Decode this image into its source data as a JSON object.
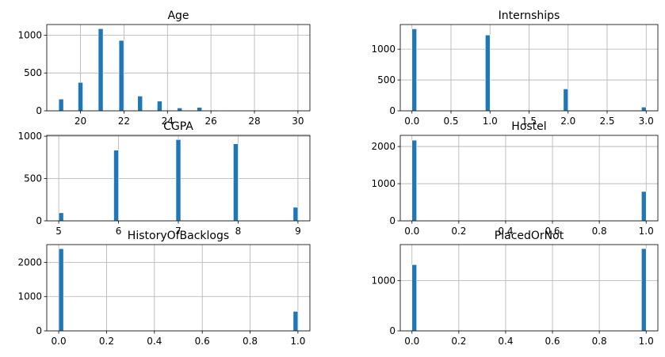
{
  "bar_color": "#1f77b4",
  "grid_color": "#b0b0b0",
  "chart_data": [
    {
      "type": "bar",
      "title": "Age",
      "xlim": [
        18.45,
        30.55
      ],
      "ylim": [
        0,
        1140
      ],
      "xticks": [
        20,
        22,
        24,
        26,
        28,
        30
      ],
      "xtick_labels": [
        "20",
        "22",
        "24",
        "26",
        "28",
        "30"
      ],
      "yticks": [
        0,
        500,
        1000
      ],
      "ytick_labels": [
        "0",
        "500",
        "1000"
      ],
      "bar_width": 0.22,
      "bars": [
        {
          "x": 19.11,
          "value": 155
        },
        {
          "x": 20.0,
          "value": 375
        },
        {
          "x": 20.93,
          "value": 1085
        },
        {
          "x": 21.88,
          "value": 930
        },
        {
          "x": 22.74,
          "value": 195
        },
        {
          "x": 23.64,
          "value": 128
        },
        {
          "x": 24.56,
          "value": 38
        },
        {
          "x": 25.47,
          "value": 45
        },
        {
          "x": 26.4,
          "value": 3
        }
      ]
    },
    {
      "type": "bar",
      "title": "Internships",
      "xlim": [
        -0.15,
        3.15
      ],
      "ylim": [
        0,
        1400
      ],
      "xticks": [
        0.0,
        0.5,
        1.0,
        1.5,
        2.0,
        2.5,
        3.0
      ],
      "xtick_labels": [
        "0.0",
        "0.5",
        "1.0",
        "1.5",
        "2.0",
        "2.5",
        "3.0"
      ],
      "yticks": [
        0,
        500,
        1000
      ],
      "ytick_labels": [
        "0",
        "500",
        "1000"
      ],
      "bar_width": 0.06,
      "bars": [
        {
          "x": 0.03,
          "value": 1330
        },
        {
          "x": 0.97,
          "value": 1230
        },
        {
          "x": 1.97,
          "value": 355
        },
        {
          "x": 2.97,
          "value": 60
        }
      ]
    },
    {
      "type": "bar",
      "title": "CGPA",
      "xlim": [
        4.8,
        9.2
      ],
      "ylim": [
        0,
        1010
      ],
      "xticks": [
        5,
        6,
        7,
        8,
        9
      ],
      "xtick_labels": [
        "5",
        "6",
        "7",
        "8",
        "9"
      ],
      "yticks": [
        0,
        500,
        1000
      ],
      "ytick_labels": [
        "0",
        "500",
        "1000"
      ],
      "bar_width": 0.08,
      "bars": [
        {
          "x": 5.04,
          "value": 95
        },
        {
          "x": 5.96,
          "value": 835
        },
        {
          "x": 7.0,
          "value": 960
        },
        {
          "x": 7.96,
          "value": 910
        },
        {
          "x": 8.96,
          "value": 160
        }
      ]
    },
    {
      "type": "bar",
      "title": "Hostel",
      "xlim": [
        -0.05,
        1.05
      ],
      "ylim": [
        0,
        2300
      ],
      "xticks": [
        0.0,
        0.2,
        0.4,
        0.6,
        0.8,
        1.0
      ],
      "xtick_labels": [
        "0.0",
        "0.2",
        "0.4",
        "0.6",
        "0.8",
        "1.0"
      ],
      "yticks": [
        0,
        1000,
        2000
      ],
      "ytick_labels": [
        "0",
        "1000",
        "2000"
      ],
      "bar_width": 0.02,
      "bars": [
        {
          "x": 0.01,
          "value": 2170
        },
        {
          "x": 0.99,
          "value": 790
        }
      ]
    },
    {
      "type": "bar",
      "title": "HistoryOfBacklogs",
      "xlim": [
        -0.05,
        1.05
      ],
      "ylim": [
        0,
        2520
      ],
      "xticks": [
        0.0,
        0.2,
        0.4,
        0.6,
        0.8,
        1.0
      ],
      "xtick_labels": [
        "0.0",
        "0.2",
        "0.4",
        "0.6",
        "0.8",
        "1.0"
      ],
      "yticks": [
        0,
        1000,
        2000
      ],
      "ytick_labels": [
        "0",
        "1000",
        "2000"
      ],
      "bar_width": 0.02,
      "bars": [
        {
          "x": 0.01,
          "value": 2400
        },
        {
          "x": 0.99,
          "value": 570
        }
      ]
    },
    {
      "type": "bar",
      "title": "PlacedOrNot",
      "xlim": [
        -0.05,
        1.05
      ],
      "ylim": [
        0,
        1720
      ],
      "xticks": [
        0.0,
        0.2,
        0.4,
        0.6,
        0.8,
        1.0
      ],
      "xtick_labels": [
        "0.0",
        "0.2",
        "0.4",
        "0.6",
        "0.8",
        "1.0"
      ],
      "yticks": [
        0,
        1000
      ],
      "ytick_labels": [
        "0",
        "1000"
      ],
      "bar_width": 0.02,
      "bars": [
        {
          "x": 0.01,
          "value": 1320
        },
        {
          "x": 0.99,
          "value": 1640
        }
      ]
    }
  ]
}
